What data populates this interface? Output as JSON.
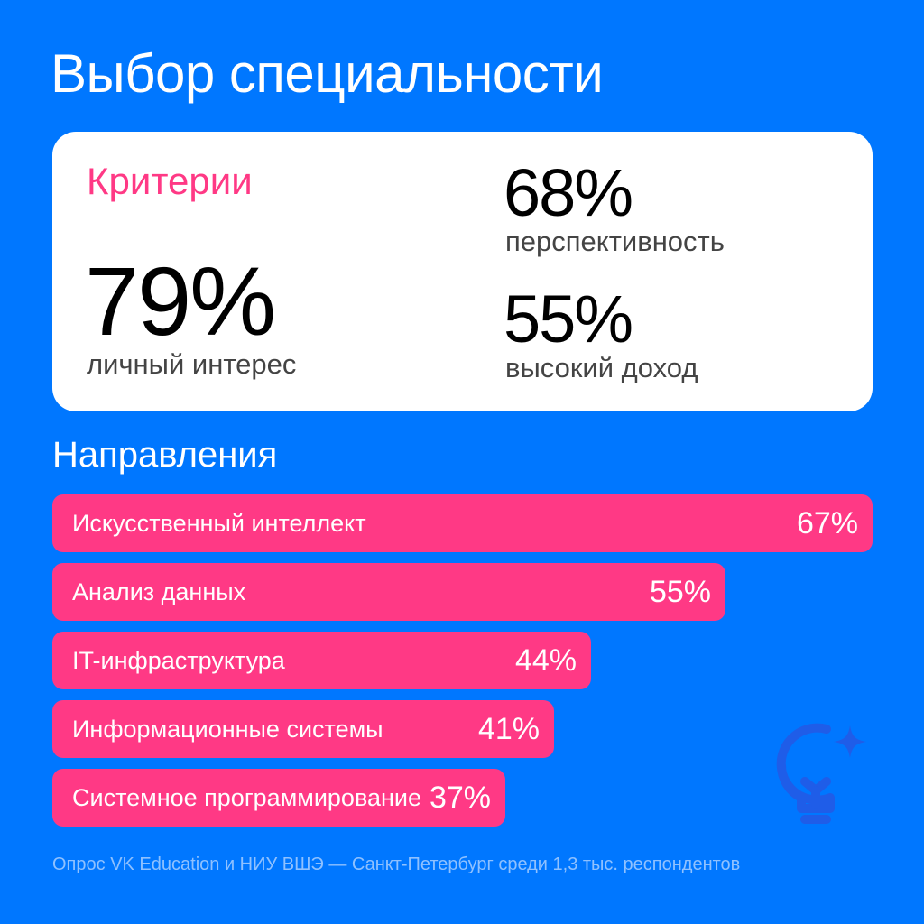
{
  "title": "Выбор специальности",
  "criteria": {
    "heading": "Критерии",
    "items": [
      {
        "value": "79%",
        "label": "личный интерес"
      },
      {
        "value": "68%",
        "label": "перспективность"
      },
      {
        "value": "55%",
        "label": "высокий доход"
      }
    ]
  },
  "directions": {
    "heading": "Направления"
  },
  "chart_data": {
    "type": "bar",
    "orientation": "horizontal",
    "categories": [
      "Искусственный интеллект",
      "Анализ данных",
      "IT-инфраструктура",
      "Информационные системы",
      "Системное программирование"
    ],
    "values": [
      67,
      55,
      44,
      41,
      37
    ],
    "value_labels": [
      "67%",
      "55%",
      "44%",
      "41%",
      "37%"
    ],
    "xlim": [
      0,
      67
    ]
  },
  "footnote": "Опрос VK Education и НИУ ВШЭ — Санкт-Петербург среди 1,3 тыс. респондентов",
  "icons": {
    "decoration": "lightbulb-sparkle-icon"
  },
  "colors": {
    "background": "#0077ff",
    "accent": "#ff3985",
    "card": "#ffffff"
  }
}
